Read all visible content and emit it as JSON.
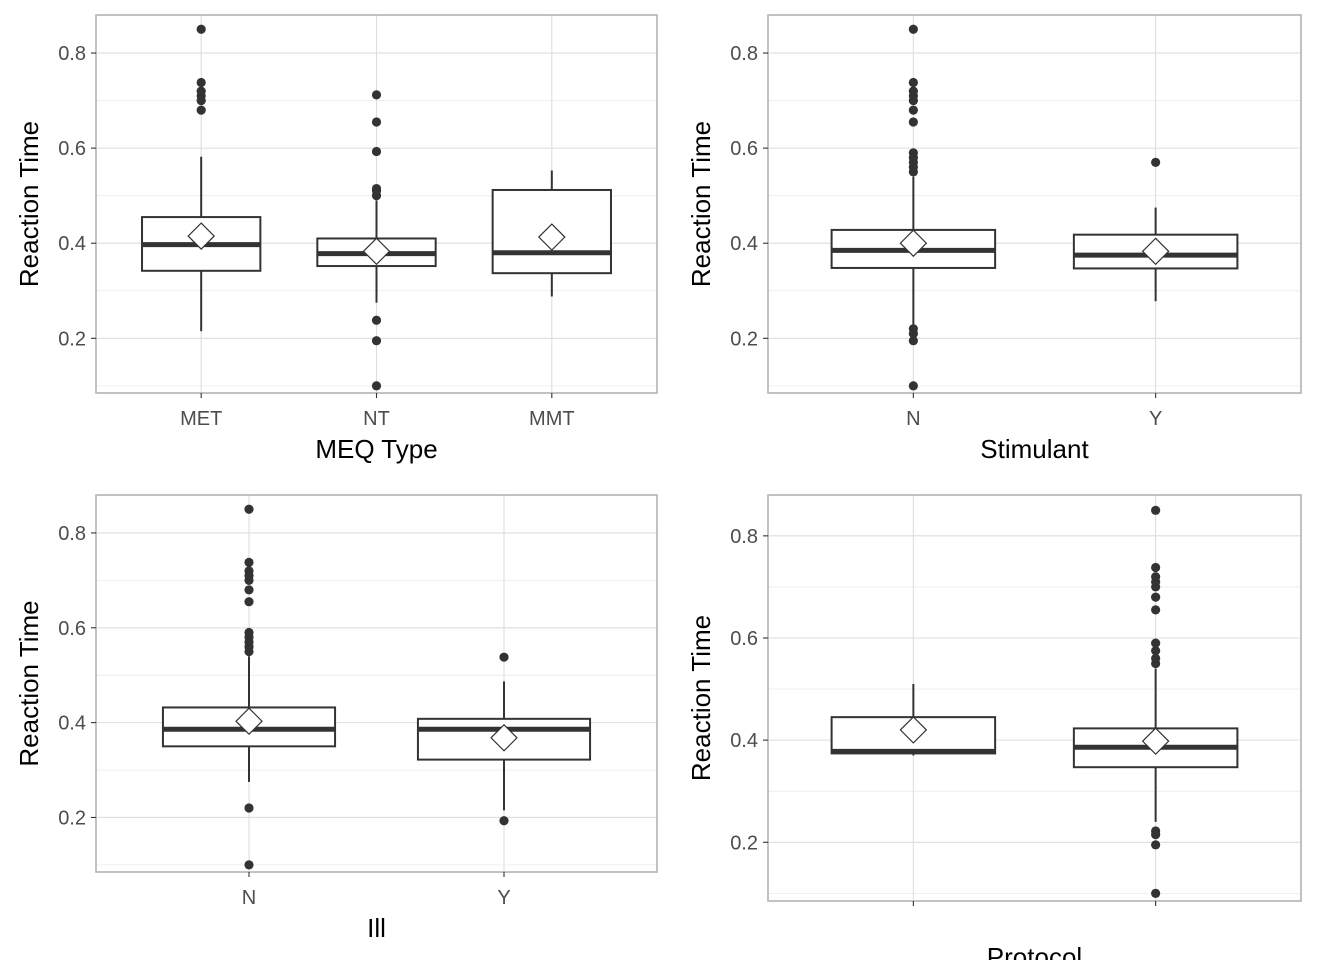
{
  "chart_data": [
    {
      "type": "box",
      "ylabel": "Reaction Time",
      "xlabel": "MEQ Type",
      "ylim": [
        0.085,
        0.88
      ],
      "yticks": [
        0.2,
        0.4,
        0.6,
        0.8
      ],
      "grid": true,
      "categories": [
        "MET",
        "NT",
        "MMT"
      ],
      "boxes": [
        {
          "category": "MET",
          "q1": 0.342,
          "median": 0.397,
          "q3": 0.455,
          "whisker_low": 0.215,
          "whisker_high": 0.582,
          "mean": 0.415,
          "outliers": [
            0.68,
            0.7,
            0.71,
            0.72,
            0.738,
            0.85
          ]
        },
        {
          "category": "NT",
          "q1": 0.352,
          "median": 0.378,
          "q3": 0.41,
          "whisker_low": 0.275,
          "whisker_high": 0.49,
          "mean": 0.383,
          "outliers": [
            0.1,
            0.195,
            0.238,
            0.5,
            0.51,
            0.515,
            0.593,
            0.655,
            0.712
          ]
        },
        {
          "category": "MMT",
          "q1": 0.337,
          "median": 0.38,
          "q3": 0.512,
          "whisker_low": 0.288,
          "whisker_high": 0.553,
          "mean": 0.413,
          "outliers": []
        }
      ]
    },
    {
      "type": "box",
      "ylabel": "Reaction Time",
      "xlabel": "Stimulant",
      "ylim": [
        0.085,
        0.88
      ],
      "yticks": [
        0.2,
        0.4,
        0.6,
        0.8
      ],
      "grid": true,
      "categories": [
        "N",
        "Y"
      ],
      "boxes": [
        {
          "category": "N",
          "q1": 0.348,
          "median": 0.385,
          "q3": 0.428,
          "whisker_low": 0.225,
          "whisker_high": 0.54,
          "mean": 0.4,
          "outliers": [
            0.1,
            0.195,
            0.21,
            0.22,
            0.55,
            0.56,
            0.57,
            0.58,
            0.59,
            0.655,
            0.68,
            0.7,
            0.71,
            0.72,
            0.738,
            0.85
          ]
        },
        {
          "category": "Y",
          "q1": 0.347,
          "median": 0.375,
          "q3": 0.418,
          "whisker_low": 0.278,
          "whisker_high": 0.475,
          "mean": 0.383,
          "outliers": [
            0.57
          ]
        }
      ]
    },
    {
      "type": "box",
      "ylabel": "Reaction Time",
      "xlabel": "Ill",
      "ylim": [
        0.085,
        0.88
      ],
      "yticks": [
        0.2,
        0.4,
        0.6,
        0.8
      ],
      "grid": true,
      "categories": [
        "N",
        "Y"
      ],
      "boxes": [
        {
          "category": "N",
          "q1": 0.35,
          "median": 0.386,
          "q3": 0.432,
          "whisker_low": 0.275,
          "whisker_high": 0.54,
          "mean": 0.403,
          "outliers": [
            0.1,
            0.22,
            0.55,
            0.56,
            0.57,
            0.58,
            0.59,
            0.655,
            0.68,
            0.7,
            0.71,
            0.72,
            0.738,
            0.85
          ]
        },
        {
          "category": "Y",
          "q1": 0.322,
          "median": 0.386,
          "q3": 0.408,
          "whisker_low": 0.215,
          "whisker_high": 0.487,
          "mean": 0.368,
          "outliers": [
            0.193,
            0.538
          ]
        }
      ]
    },
    {
      "type": "box",
      "ylabel": "Reaction Time",
      "xlabel": "Protocol",
      "ylim": [
        0.085,
        0.88
      ],
      "yticks": [
        0.2,
        0.4,
        0.6,
        0.8
      ],
      "grid": true,
      "categories": [
        "",
        ""
      ],
      "boxes": [
        {
          "category": "",
          "q1": 0.374,
          "median": 0.378,
          "q3": 0.445,
          "whisker_low": 0.37,
          "whisker_high": 0.51,
          "mean": 0.42,
          "outliers": []
        },
        {
          "category": "",
          "q1": 0.347,
          "median": 0.386,
          "q3": 0.423,
          "whisker_low": 0.24,
          "whisker_high": 0.54,
          "mean": 0.398,
          "outliers": [
            0.1,
            0.195,
            0.215,
            0.222,
            0.55,
            0.56,
            0.575,
            0.59,
            0.655,
            0.68,
            0.7,
            0.71,
            0.72,
            0.738,
            0.85
          ]
        }
      ]
    }
  ]
}
